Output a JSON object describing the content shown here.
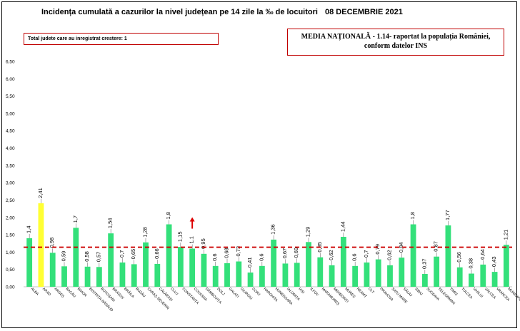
{
  "header": {
    "title": "Incidența cumulată a cazurilor la nivel județean pe 14 zile la ‰ de locuitori",
    "date": "08 DECEMBRIE 2021"
  },
  "info_box": {
    "text": "Total judete care au inregistrat crestere: 1"
  },
  "national_box": {
    "line1": "MEDIA NAȚIONALĂ - 1.14-  raportat la populația României,",
    "line2": "conform datelor INS"
  },
  "colors": {
    "bar": "#33e07a",
    "highlight_bar": "#ffff33",
    "reference_line": "#cc0000",
    "arrow": "#dd0000",
    "box_border": "#c00000"
  },
  "chart_data": {
    "type": "bar",
    "categories": [
      "ALBA",
      "ARAD",
      "ARGEȘ",
      "BACĂU",
      "BIHOR",
      "BISTRIȚA-NĂSĂUD",
      "BOTOȘANI",
      "BRAȘOV",
      "BRĂILA",
      "BUZĂU",
      "CARAȘ-SEVERIN",
      "CĂLĂRAȘI",
      "CLUJ",
      "CONSTANȚA",
      "COVASNA",
      "DÂMBOVIȚA",
      "DOLJ",
      "GALAȚI",
      "GIURGIU",
      "GORJ",
      "HARGHITA",
      "HUNEDOARA",
      "IALOMIȚA",
      "IAȘI",
      "ILFOV",
      "MARAMUREȘ",
      "MEHEDINȚI",
      "MUREȘ",
      "NEAMȚ",
      "OLT",
      "PRAHOVA",
      "SATU MARE",
      "SĂLAJ",
      "SIBIU",
      "SUCEAVA",
      "TELEORMAN",
      "TIMIȘ",
      "TULCEA",
      "VASLUI",
      "VÂLCEA",
      "VRANCEA",
      "MUNICIPIUL BUCUREȘTI"
    ],
    "values": [
      1.4,
      2.41,
      0.98,
      0.59,
      1.7,
      0.58,
      0.57,
      1.54,
      0.7,
      0.65,
      1.28,
      0.66,
      1.8,
      1.15,
      1.1,
      0.95,
      0.6,
      0.68,
      0.73,
      0.41,
      0.6,
      1.36,
      0.67,
      0.69,
      1.29,
      0.85,
      0.62,
      1.44,
      0.6,
      0.7,
      0.79,
      0.62,
      0.84,
      1.8,
      0.37,
      0.87,
      1.77,
      0.56,
      0.38,
      0.64,
      0.43,
      1.21
    ],
    "labels": [
      "1,4",
      "2,41",
      "0,98",
      "0,59",
      "1,7",
      "0,58",
      "0,57",
      "1,54",
      "0,7",
      "0,65",
      "1,28",
      "0,66",
      "1,8",
      "1,15",
      "1,1",
      "0,95",
      "0,6",
      "0,68",
      "0,73",
      "0,41",
      "0,6",
      "1,36",
      "0,67",
      "0,69",
      "1,29",
      "0,85",
      "0,62",
      "1,44",
      "0,6",
      "0,7",
      "0,79",
      "0,62",
      "0,84",
      "1,8",
      "0,37",
      "0,87",
      "1,77",
      "0,56",
      "0,38",
      "0,64",
      "0,43",
      "1,21"
    ],
    "highlight_index": 1,
    "increase_index": 14,
    "reference_value": 1.14,
    "yticks": [
      "0,00",
      "0,50",
      "1,00",
      "1,50",
      "2,00",
      "2,50",
      "3,00",
      "3,50",
      "4,00",
      "4,50",
      "5,00",
      "5,50",
      "6,00",
      "6,50"
    ],
    "ylim": [
      0,
      6.5
    ],
    "grid": false,
    "xlabel": "",
    "ylabel": ""
  }
}
